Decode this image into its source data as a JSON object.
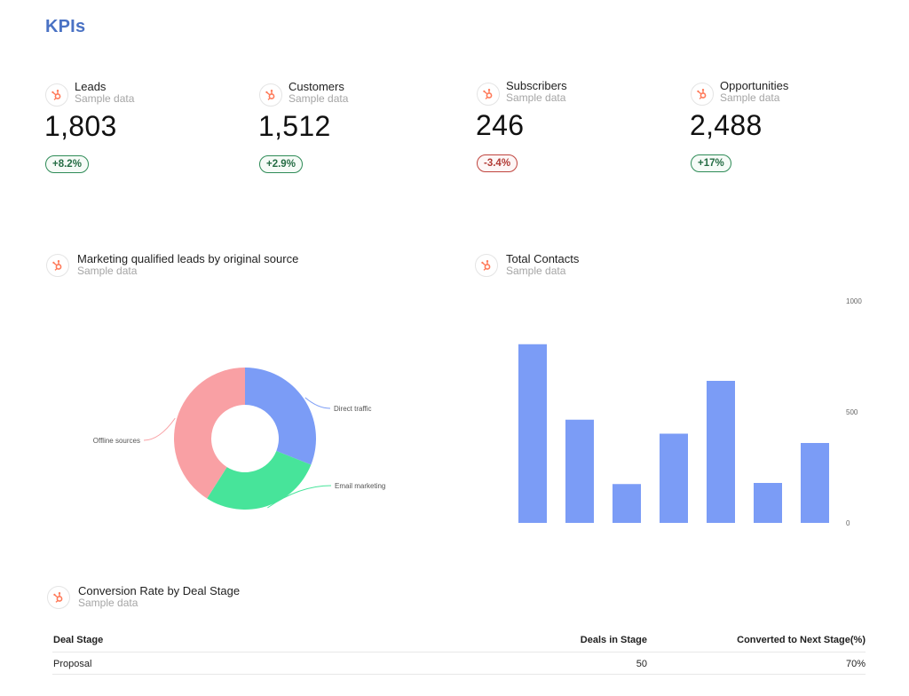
{
  "page": {
    "title": "KPIs"
  },
  "colors": {
    "accent": "#4a72c4",
    "brand_icon": "#ff7a59",
    "positive": "#2e8b57",
    "negative": "#c0443e",
    "blue": "#7b9cf6",
    "pink": "#f9a0a4",
    "green": "#47e49a"
  },
  "kpis": [
    {
      "label": "Leads",
      "sub": "Sample data",
      "value": "1,803",
      "change": "+8.2%",
      "trend": "up"
    },
    {
      "label": "Customers",
      "sub": "Sample data",
      "value": "1,512",
      "change": "+2.9%",
      "trend": "up"
    },
    {
      "label": "Subscribers",
      "sub": "Sample data",
      "value": "246",
      "change": "-3.4%",
      "trend": "down"
    },
    {
      "label": "Opportunities",
      "sub": "Sample data",
      "value": "2,488",
      "change": "+17%",
      "trend": "up"
    }
  ],
  "sections": {
    "mql": {
      "title": "Marketing qualified leads by original source",
      "sub": "Sample data"
    },
    "contacts": {
      "title": "Total Contacts",
      "sub": "Sample data"
    },
    "conversion": {
      "title": "Conversion Rate by Deal Stage",
      "sub": "Sample data"
    }
  },
  "chart_data": [
    {
      "type": "pie",
      "title": "Marketing qualified leads by original source",
      "labels": [
        "Direct traffic",
        "Email marketing",
        "Offline sources"
      ],
      "values": [
        31,
        28,
        41
      ],
      "colors": [
        "#7b9cf6",
        "#47e49a",
        "#f9a0a4"
      ],
      "donut": true
    },
    {
      "type": "bar",
      "title": "Total Contacts",
      "categories": [
        "",
        "",
        "",
        "",
        "",
        "",
        ""
      ],
      "values": [
        805,
        465,
        175,
        402,
        640,
        180,
        360
      ],
      "ylim": [
        0,
        1000
      ],
      "yticks": [
        "0",
        "500",
        "1000"
      ],
      "ytick_values": [
        0,
        500,
        1000
      ],
      "color": "#7b9cf6",
      "grid": false
    }
  ],
  "table": {
    "headers": {
      "stage": "Deal Stage",
      "deals": "Deals in Stage",
      "conv": "Converted to Next Stage(%)"
    },
    "rows": [
      {
        "stage": "Proposal",
        "deals": "50",
        "conv": "70%"
      }
    ]
  }
}
